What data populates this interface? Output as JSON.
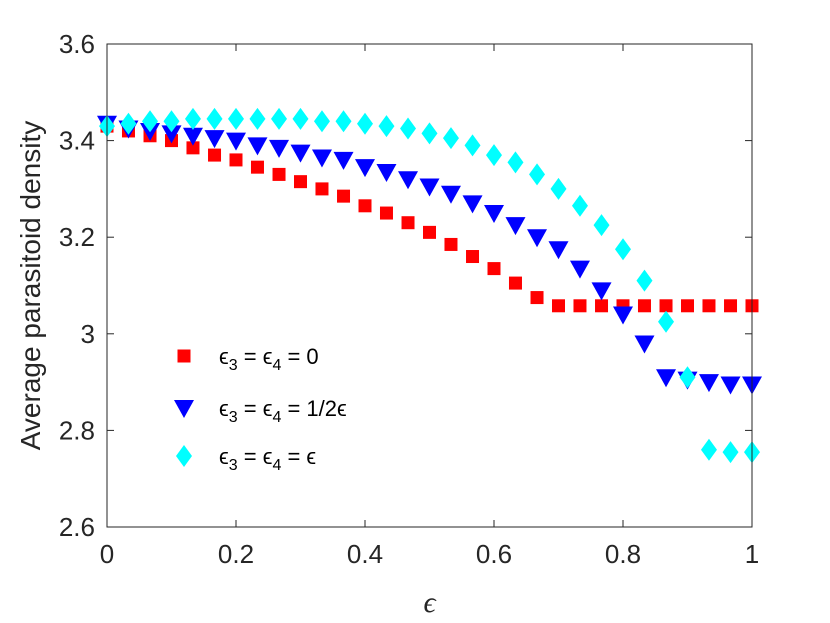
{
  "chart_data": {
    "type": "scatter",
    "xlabel": "ϵ",
    "ylabel": "Average parasitoid density",
    "xlim": [
      0,
      1
    ],
    "ylim": [
      2.6,
      3.6
    ],
    "xticks": [
      "0",
      "0.2",
      "0.4",
      "0.6",
      "0.8",
      "1"
    ],
    "yticks": [
      "2.6",
      "2.8",
      "3",
      "3.2",
      "3.4",
      "3.6"
    ],
    "legend_position": "bottom-left",
    "x": [
      0,
      0.0333,
      0.0667,
      0.1,
      0.1333,
      0.1667,
      0.2,
      0.2333,
      0.2667,
      0.3,
      0.3333,
      0.3667,
      0.4,
      0.4333,
      0.4667,
      0.5,
      0.5333,
      0.5667,
      0.6,
      0.6333,
      0.6667,
      0.7,
      0.7333,
      0.7667,
      0.8,
      0.8333,
      0.8667,
      0.9,
      0.9333,
      0.9667,
      1
    ],
    "series": [
      {
        "name": "ϵ3 = ϵ4 = 0",
        "legend_parts": [
          "ϵ",
          "3",
          " = ϵ",
          "4",
          " = 0"
        ],
        "marker": "square",
        "color": "#ff0000",
        "values": [
          3.43,
          3.42,
          3.41,
          3.4,
          3.385,
          3.37,
          3.36,
          3.345,
          3.33,
          3.315,
          3.3,
          3.285,
          3.265,
          3.25,
          3.23,
          3.21,
          3.185,
          3.16,
          3.135,
          3.105,
          3.075,
          3.058,
          3.058,
          3.058,
          3.058,
          3.058,
          3.058,
          3.058,
          3.058,
          3.058,
          3.058
        ]
      },
      {
        "name": "ϵ3 = ϵ4 = 1/2ϵ",
        "legend_parts": [
          "ϵ",
          "3",
          " = ϵ",
          "4",
          " = 1/2ϵ"
        ],
        "marker": "triangle-down",
        "color": "#0000ff",
        "values": [
          3.435,
          3.425,
          3.42,
          3.415,
          3.41,
          3.405,
          3.4,
          3.39,
          3.385,
          3.375,
          3.365,
          3.36,
          3.345,
          3.335,
          3.32,
          3.305,
          3.29,
          3.27,
          3.25,
          3.225,
          3.2,
          3.175,
          3.135,
          3.09,
          3.04,
          2.98,
          2.91,
          2.905,
          2.9,
          2.895,
          2.895
        ]
      },
      {
        "name": "ϵ3 = ϵ4 = ϵ",
        "legend_parts": [
          "ϵ",
          "3",
          " = ϵ",
          "4",
          " = ϵ"
        ],
        "marker": "diamond",
        "color": "#00ffff",
        "values": [
          3.43,
          3.435,
          3.44,
          3.44,
          3.445,
          3.445,
          3.445,
          3.445,
          3.445,
          3.445,
          3.44,
          3.44,
          3.435,
          3.43,
          3.425,
          3.415,
          3.405,
          3.39,
          3.37,
          3.355,
          3.33,
          3.3,
          3.265,
          3.225,
          3.175,
          3.11,
          3.025,
          2.91,
          2.76,
          2.755,
          2.755
        ]
      }
    ]
  }
}
